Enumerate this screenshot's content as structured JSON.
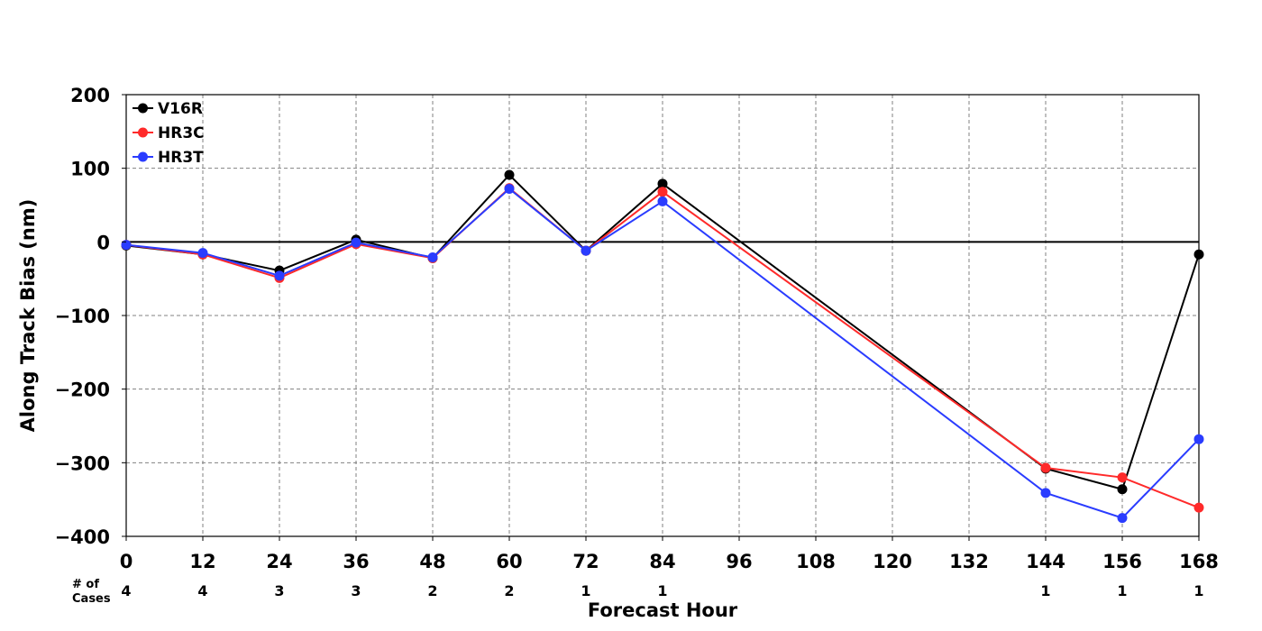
{
  "chart_data": {
    "type": "line",
    "title": "",
    "xlabel": "Forecast Hour",
    "ylabel": "Along Track Bias (nm)",
    "x": [
      0,
      12,
      24,
      36,
      48,
      60,
      72,
      84,
      144,
      156,
      168
    ],
    "xticks": [
      0,
      12,
      24,
      36,
      48,
      60,
      72,
      84,
      96,
      108,
      120,
      132,
      144,
      156,
      168
    ],
    "yticks": [
      200,
      100,
      0,
      -100,
      -200,
      -300,
      -400
    ],
    "ytick_labels": [
      "200",
      "100",
      "0",
      "−100",
      "−200",
      "−300",
      "−400"
    ],
    "xlim": [
      0,
      168
    ],
    "ylim": [
      -400,
      200
    ],
    "grid": true,
    "grid_style": "dashed",
    "zero_line": true,
    "legend_placement": "top-left",
    "series": [
      {
        "name": "V16R",
        "color": "#000000",
        "values": [
          -5,
          -17,
          -39,
          3,
          -22,
          91,
          -12,
          79,
          -308,
          -336,
          -17
        ]
      },
      {
        "name": "HR3C",
        "color": "#ff2a2a",
        "values": [
          -4,
          -17,
          -49,
          -3,
          -22,
          73,
          -12,
          68,
          -307,
          -320,
          -361
        ]
      },
      {
        "name": "HR3T",
        "color": "#2a3cff",
        "values": [
          -4,
          -15,
          -46,
          -1,
          -21,
          72,
          -12,
          55,
          -341,
          -375,
          -268
        ]
      }
    ],
    "cases": {
      "label_line1": "# of",
      "label_line2": "Cases",
      "hours": [
        0,
        12,
        24,
        36,
        48,
        60,
        72,
        84,
        144,
        156,
        168
      ],
      "counts": [
        "4",
        "4",
        "3",
        "3",
        "2",
        "2",
        "1",
        "1",
        "1",
        "1",
        "1"
      ]
    }
  }
}
